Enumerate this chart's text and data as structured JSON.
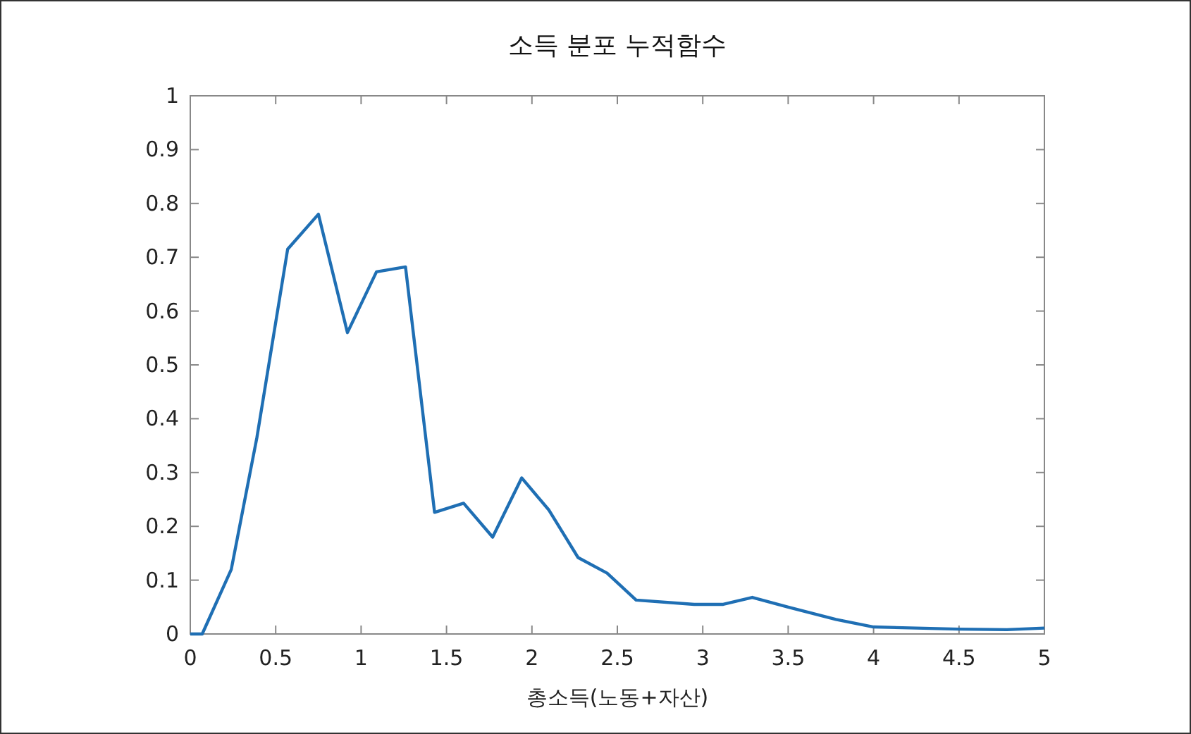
{
  "chart_data": {
    "type": "line",
    "title": "소득 분포 누적함수",
    "xlabel": "총소득(노동+자산)",
    "x": [
      0,
      0.07,
      0.24,
      0.39,
      0.57,
      0.75,
      0.92,
      1.09,
      1.26,
      1.43,
      1.6,
      1.77,
      1.94,
      2.1,
      2.27,
      2.44,
      2.61,
      2.95,
      3.12,
      3.29,
      3.5,
      3.78,
      4.0,
      4.5,
      4.78,
      5.0
    ],
    "values": [
      0,
      0,
      0.12,
      0.365,
      0.715,
      0.78,
      0.56,
      0.673,
      0.682,
      0.226,
      0.243,
      0.18,
      0.29,
      0.23,
      0.142,
      0.113,
      0.063,
      0.055,
      0.055,
      0.068,
      0.05,
      0.027,
      0.013,
      0.009,
      0.008,
      0.011
    ],
    "color": "#1f6fb4",
    "xlim": [
      0,
      5
    ],
    "ylim": [
      0,
      1
    ],
    "xticks": [
      0,
      0.5,
      1,
      1.5,
      2,
      2.5,
      3,
      3.5,
      4,
      4.5,
      5
    ],
    "yticks": [
      0,
      0.1,
      0.2,
      0.3,
      0.4,
      0.5,
      0.6,
      0.7,
      0.8,
      0.9,
      1
    ],
    "grid": false,
    "marker": "none",
    "line_style": "solid"
  }
}
